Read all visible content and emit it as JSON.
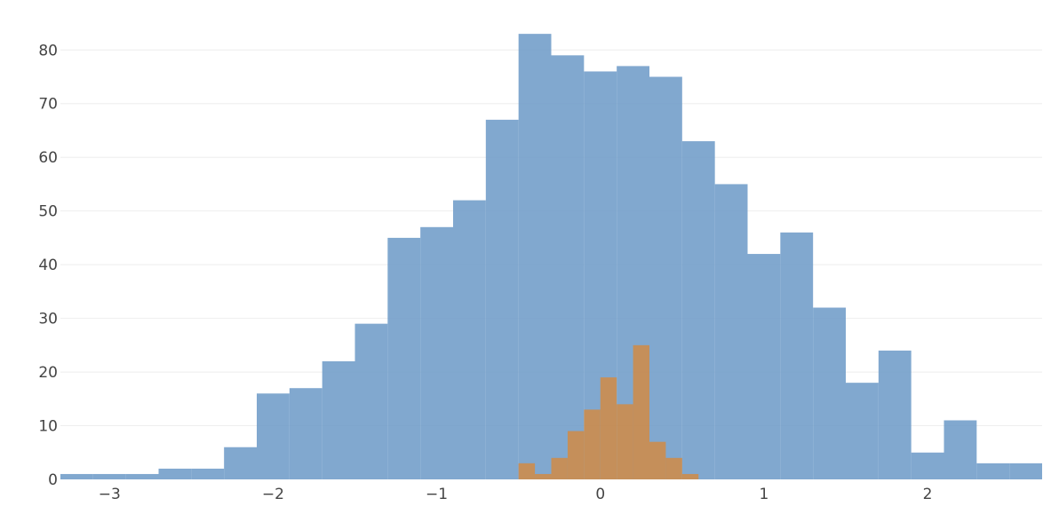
{
  "chart_data": {
    "type": "histogram",
    "title": "",
    "xlabel": "",
    "ylabel": "",
    "xlim": [
      -3.3,
      2.7
    ],
    "ylim": [
      0,
      86
    ],
    "grid": true,
    "x_ticks": [
      {
        "value": -3,
        "label": "−3"
      },
      {
        "value": -2,
        "label": "−2"
      },
      {
        "value": -1,
        "label": "−1"
      },
      {
        "value": 0,
        "label": "0"
      },
      {
        "value": 1,
        "label": "1"
      },
      {
        "value": 2,
        "label": "2"
      }
    ],
    "y_ticks": [
      {
        "value": 0,
        "label": "0"
      },
      {
        "value": 10,
        "label": "10"
      },
      {
        "value": 20,
        "label": "20"
      },
      {
        "value": 30,
        "label": "30"
      },
      {
        "value": 40,
        "label": "40"
      },
      {
        "value": 50,
        "label": "50"
      },
      {
        "value": 60,
        "label": "60"
      },
      {
        "value": 70,
        "label": "70"
      },
      {
        "value": 80,
        "label": "80"
      }
    ],
    "series": [
      {
        "color": "#6f9cc8",
        "opacity": 0.88,
        "bin_edges": [
          -3.3,
          -3.1,
          -2.9,
          -2.7,
          -2.5,
          -2.3,
          -2.1,
          -1.9,
          -1.7,
          -1.5,
          -1.3,
          -1.1,
          -0.9,
          -0.7,
          -0.5,
          -0.3,
          -0.1,
          0.1,
          0.3,
          0.5,
          0.7,
          0.9,
          1.1,
          1.3,
          1.5,
          1.7,
          1.9,
          2.1,
          2.3,
          2.5,
          2.7
        ],
        "counts": [
          1,
          1,
          1,
          2,
          2,
          6,
          16,
          17,
          22,
          29,
          45,
          47,
          52,
          67,
          83,
          79,
          76,
          77,
          75,
          63,
          55,
          42,
          46,
          32,
          18,
          24,
          5,
          11,
          3,
          3
        ]
      },
      {
        "color": "#cc8c4c",
        "opacity": 0.9,
        "bin_edges": [
          -0.5,
          -0.4,
          -0.3,
          -0.2,
          -0.1,
          0.0,
          0.1,
          0.2,
          0.3,
          0.4,
          0.5,
          0.6
        ],
        "counts": [
          3,
          1,
          4,
          9,
          13,
          19,
          14,
          25,
          7,
          4,
          1
        ]
      }
    ]
  }
}
